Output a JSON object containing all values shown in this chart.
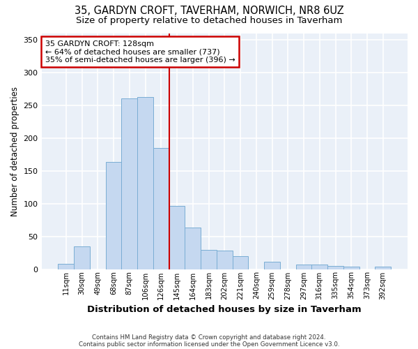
{
  "title1": "35, GARDYN CROFT, TAVERHAM, NORWICH, NR8 6UZ",
  "title2": "Size of property relative to detached houses in Taverham",
  "xlabel": "Distribution of detached houses by size in Taverham",
  "ylabel": "Number of detached properties",
  "categories": [
    "11sqm",
    "30sqm",
    "49sqm",
    "68sqm",
    "87sqm",
    "106sqm",
    "126sqm",
    "145sqm",
    "164sqm",
    "183sqm",
    "202sqm",
    "221sqm",
    "240sqm",
    "259sqm",
    "278sqm",
    "297sqm",
    "316sqm",
    "335sqm",
    "354sqm",
    "373sqm",
    "392sqm"
  ],
  "values": [
    8,
    35,
    0,
    163,
    260,
    263,
    185,
    96,
    63,
    29,
    28,
    20,
    0,
    11,
    0,
    7,
    7,
    5,
    4,
    0,
    4
  ],
  "bar_color": "#c5d8f0",
  "bar_edge_color": "#7aadd4",
  "bg_color": "#eaf0f8",
  "grid_color": "#ffffff",
  "vline_x_index": 6,
  "vline_color": "#cc0000",
  "annotation_line1": "35 GARDYN CROFT: 128sqm",
  "annotation_line2": "← 64% of detached houses are smaller (737)",
  "annotation_line3": "35% of semi-detached houses are larger (396) →",
  "annotation_box_color": "#cc0000",
  "footer1": "Contains HM Land Registry data © Crown copyright and database right 2024.",
  "footer2": "Contains public sector information licensed under the Open Government Licence v3.0.",
  "ylim": [
    0,
    360
  ],
  "title1_fontsize": 10.5,
  "title2_fontsize": 9.5,
  "xlabel_fontsize": 9.5,
  "ylabel_fontsize": 8.5,
  "fig_bg": "#ffffff"
}
